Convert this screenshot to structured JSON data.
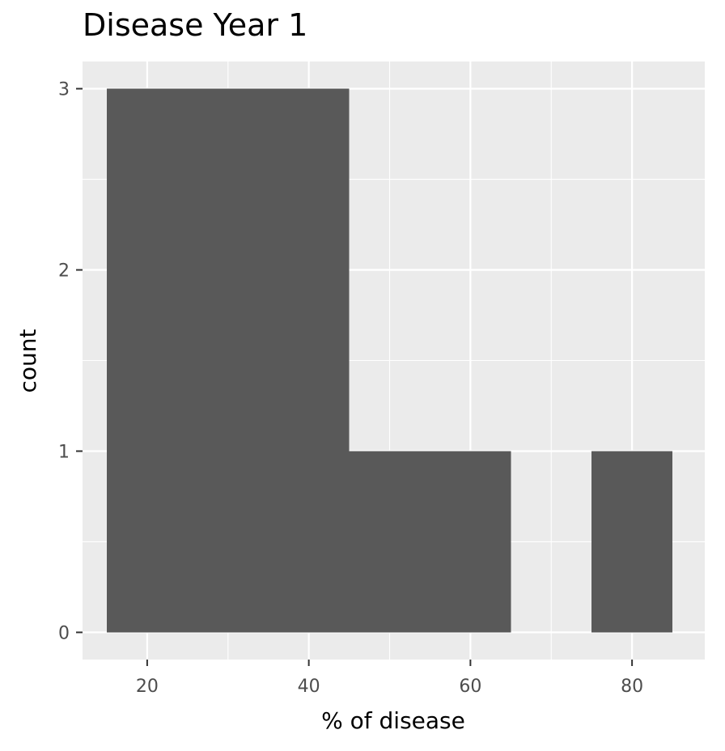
{
  "chart_data": {
    "type": "histogram",
    "title": "Disease Year 1",
    "xlabel": "% of disease",
    "ylabel": "count",
    "xlim": [
      12,
      89
    ],
    "ylim": [
      -0.15,
      3.15
    ],
    "x_ticks": [
      20,
      40,
      60,
      80
    ],
    "y_ticks": [
      0,
      1,
      2,
      3
    ],
    "x_tick_labels": [
      "20",
      "40",
      "60",
      "80"
    ],
    "y_tick_labels": [
      "0",
      "1",
      "2",
      "3"
    ],
    "x_minor": [
      30,
      50,
      70
    ],
    "y_minor": [
      0.5,
      1.5,
      2.5
    ],
    "bins": [
      {
        "x_start": 15,
        "x_end": 25,
        "count": 3
      },
      {
        "x_start": 25,
        "x_end": 35,
        "count": 3
      },
      {
        "x_start": 35,
        "x_end": 45,
        "count": 3
      },
      {
        "x_start": 45,
        "x_end": 55,
        "count": 1
      },
      {
        "x_start": 55,
        "x_end": 65,
        "count": 1
      },
      {
        "x_start": 65,
        "x_end": 75,
        "count": 0
      },
      {
        "x_start": 75,
        "x_end": 85,
        "count": 1
      }
    ],
    "bar_color": "#595959",
    "panel_background": "#ebebeb",
    "grid": true,
    "legend": "none"
  }
}
